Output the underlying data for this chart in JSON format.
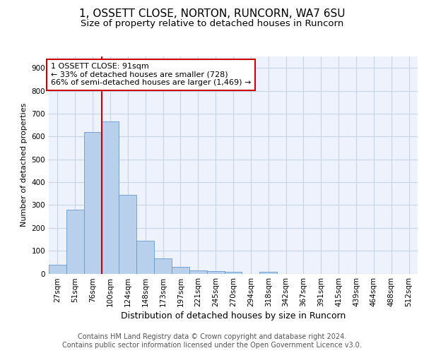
{
  "title1": "1, OSSETT CLOSE, NORTON, RUNCORN, WA7 6SU",
  "title2": "Size of property relative to detached houses in Runcorn",
  "xlabel": "Distribution of detached houses by size in Runcorn",
  "ylabel": "Number of detached properties",
  "bin_labels": [
    "27sqm",
    "51sqm",
    "76sqm",
    "100sqm",
    "124sqm",
    "148sqm",
    "173sqm",
    "197sqm",
    "221sqm",
    "245sqm",
    "270sqm",
    "294sqm",
    "318sqm",
    "342sqm",
    "367sqm",
    "391sqm",
    "415sqm",
    "439sqm",
    "464sqm",
    "488sqm",
    "512sqm"
  ],
  "bar_values": [
    40,
    280,
    620,
    665,
    345,
    145,
    65,
    28,
    15,
    10,
    8,
    0,
    8,
    0,
    0,
    0,
    0,
    0,
    0,
    0,
    0
  ],
  "bar_color": "#b8d0ec",
  "bar_edge_color": "#6699cc",
  "highlight_line_color": "#cc0000",
  "highlight_line_bin": 3,
  "annotation_text": "1 OSSETT CLOSE: 91sqm\n← 33% of detached houses are smaller (728)\n66% of semi-detached houses are larger (1,469) →",
  "annotation_box_color": "#ffffff",
  "annotation_box_edge": "#cc0000",
  "ylim": [
    0,
    950
  ],
  "yticks": [
    0,
    100,
    200,
    300,
    400,
    500,
    600,
    700,
    800,
    900
  ],
  "footer_text": "Contains HM Land Registry data © Crown copyright and database right 2024.\nContains public sector information licensed under the Open Government Licence v3.0.",
  "grid_color": "#c8d4e8",
  "background_color": "#edf2fc",
  "fig_bg_color": "#ffffff",
  "title1_fontsize": 11,
  "title2_fontsize": 9.5,
  "xlabel_fontsize": 9,
  "ylabel_fontsize": 8,
  "tick_fontsize": 7.5,
  "footer_fontsize": 7,
  "annot_fontsize": 8
}
